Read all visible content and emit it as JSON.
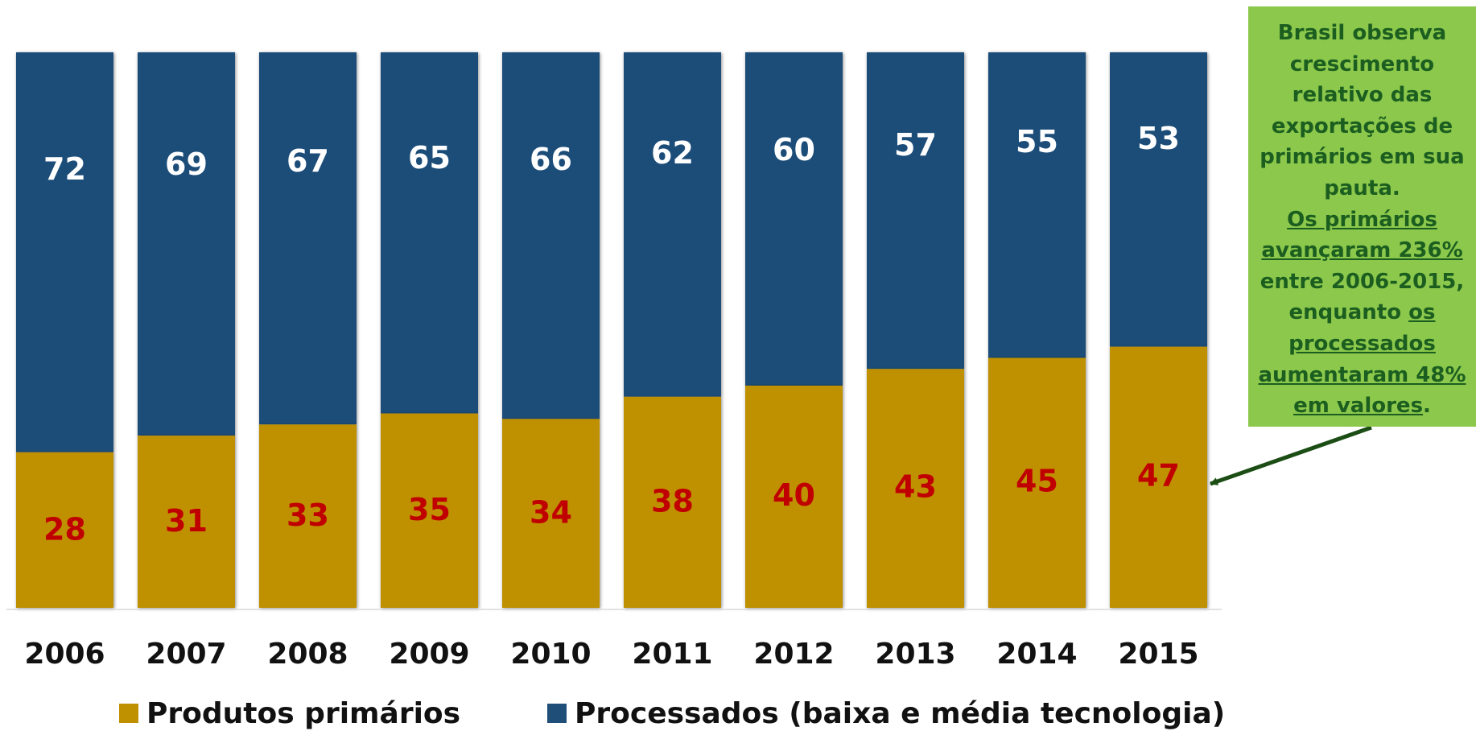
{
  "chart_data": {
    "type": "bar",
    "stacked": true,
    "categories": [
      "2006",
      "2007",
      "2008",
      "2009",
      "2010",
      "2011",
      "2012",
      "2013",
      "2014",
      "2015"
    ],
    "series": [
      {
        "name": "Produtos primários",
        "values": [
          28,
          31,
          33,
          35,
          34,
          38,
          40,
          43,
          45,
          47
        ],
        "color": "#bf9000",
        "label_color": "#c00000"
      },
      {
        "name": "Processados (baixa e média tecnologia)",
        "values": [
          72,
          69,
          67,
          65,
          66,
          62,
          60,
          57,
          55,
          53
        ],
        "color": "#1f4e79",
        "label_color": "#ffffff"
      }
    ],
    "ylim": [
      0,
      100
    ],
    "grid": false,
    "legend_position": "bottom"
  },
  "annotation": {
    "line1": "Brasil observa",
    "line2": "crescimento",
    "line3": "relativo das",
    "line4": "exportações de",
    "line5": "primários em sua",
    "line6": "pauta.",
    "line7": "Os primários",
    "line8": "avançaram 236%",
    "line9": "entre 2006-2015,",
    "line10a": "enquanto ",
    "line10b": "os",
    "line11": "processados",
    "line12": "aumentaram 48%",
    "line13": "em valores",
    "line13b": "."
  },
  "colors": {
    "primary": "#bf9000",
    "processed": "#1f4e79",
    "annotation_bg": "#8bc84b",
    "annotation_text": "#1b5e20",
    "arrow": "#1b4d14"
  }
}
